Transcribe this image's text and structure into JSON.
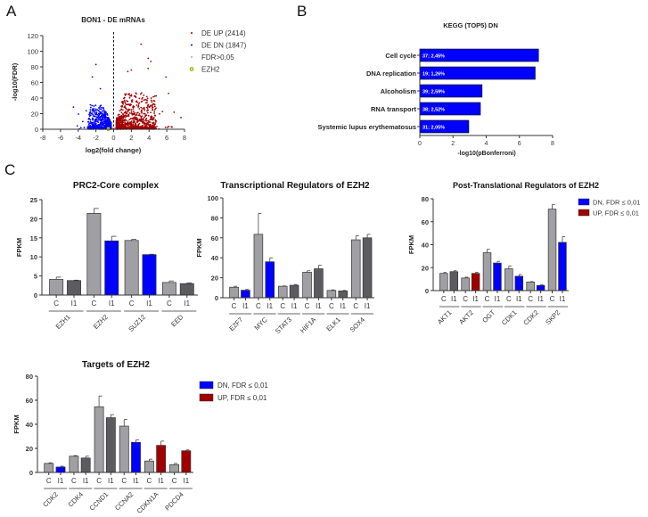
{
  "panels": {
    "a": "A",
    "b": "B",
    "c": "C"
  },
  "colors": {
    "up": "#a00000",
    "down": "#0000ff",
    "ns": "#b0b0b0",
    "ezh2": "#e8e800",
    "control": "#a0a0a4",
    "treated_ns": "#5c5c60",
    "axis": "#333333"
  },
  "chart_data": [
    {
      "id": "volcano",
      "type": "scatter",
      "title": "BON1 - DE mRNAs",
      "xlabel": "log2(fold change)",
      "ylabel": "-log10(FDR)",
      "xlim": [
        -8,
        8
      ],
      "ylim": [
        0,
        120
      ],
      "xticks": [
        -8,
        -6,
        -4,
        -2,
        0,
        2,
        4,
        6,
        8
      ],
      "yticks": [
        0,
        20,
        40,
        60,
        80,
        100,
        120
      ],
      "threshold_x": 0,
      "legend": [
        {
          "label": "DE UP (2414)",
          "key": "up",
          "count": 2414
        },
        {
          "label": "DE DN (1847)",
          "key": "down",
          "count": 1847
        },
        {
          "label": "FDR>0,05",
          "key": "ns"
        },
        {
          "label": "EZH2",
          "key": "ezh2"
        }
      ],
      "highlight": {
        "name": "EZH2",
        "x": -0.6,
        "y": 0.5
      },
      "notable_points": [
        {
          "x": 3.1,
          "y": 109
        },
        {
          "x": 3.9,
          "y": 91
        },
        {
          "x": 4.2,
          "y": 87
        },
        {
          "x": 3.9,
          "y": 78
        },
        {
          "x": 2.0,
          "y": 76
        },
        {
          "x": 1.6,
          "y": 74
        },
        {
          "x": 5.9,
          "y": 67
        },
        {
          "x": 6.2,
          "y": 46
        },
        {
          "x": -2.0,
          "y": 83
        },
        {
          "x": -2.4,
          "y": 67
        },
        {
          "x": -1.5,
          "y": 52
        },
        {
          "x": 7.6,
          "y": 15
        }
      ],
      "legend_position": "right"
    },
    {
      "id": "kegg",
      "type": "bar",
      "orientation": "horizontal",
      "title": "KEGG (TOP5) DN",
      "xlabel": "-log10(pBonferroni)",
      "xlim": [
        0,
        8
      ],
      "xticks": [
        0,
        2,
        4,
        6,
        8
      ],
      "categories": [
        "Cell cycle",
        "DNA replication",
        "Alcoholism",
        "RNA transport",
        "Systemic lupus erythematosus"
      ],
      "values": [
        7.15,
        6.95,
        3.75,
        3.65,
        2.95
      ],
      "bar_labels": [
        "37; 2,45%",
        "19; 1,26%",
        "39; 2,59%",
        "38; 2,52%",
        "31; 2,05%"
      ]
    },
    {
      "id": "prc2",
      "type": "bar",
      "title": "PRC2-Core complex",
      "ylabel": "FPKM",
      "ylim": [
        0,
        25
      ],
      "yticks": [
        0,
        5,
        10,
        15,
        20,
        25
      ],
      "conditions": [
        "C",
        "I1"
      ],
      "genes": [
        {
          "name": "EZH1",
          "values": [
            4.1,
            3.8
          ],
          "errors": [
            0.6,
            0.1
          ],
          "status": "ns"
        },
        {
          "name": "EZH2",
          "values": [
            21.4,
            14.2
          ],
          "errors": [
            1.3,
            1.2
          ],
          "status": "down"
        },
        {
          "name": "SUZ12",
          "values": [
            14.3,
            10.6
          ],
          "errors": [
            0.3,
            0.1
          ],
          "status": "down"
        },
        {
          "name": "EED",
          "values": [
            3.3,
            3.0
          ],
          "errors": [
            0.4,
            0.2
          ],
          "status": "ns"
        }
      ]
    },
    {
      "id": "transcriptional",
      "type": "bar",
      "title": "Transcriptional Regulators of EZH2",
      "ylabel": "FPKM",
      "ylim": [
        0,
        100
      ],
      "yticks": [
        0,
        20,
        40,
        60,
        80,
        100
      ],
      "conditions": [
        "C",
        "I1"
      ],
      "genes": [
        {
          "name": "E2F7",
          "values": [
            10.5,
            7.5
          ],
          "errors": [
            1.0,
            0.8
          ],
          "status": "down"
        },
        {
          "name": "MYC",
          "values": [
            63.5,
            36.0
          ],
          "errors": [
            21.0,
            4.0
          ],
          "status": "down"
        },
        {
          "name": "STAT3",
          "values": [
            11.5,
            12.5
          ],
          "errors": [
            0.3,
            0.7
          ],
          "status": "ns"
        },
        {
          "name": "HIF1A",
          "values": [
            25.5,
            29.0
          ],
          "errors": [
            1.5,
            3.5
          ],
          "status": "ns"
        },
        {
          "name": "ELK1",
          "values": [
            7.3,
            6.8
          ],
          "errors": [
            0.5,
            0.5
          ],
          "status": "ns"
        },
        {
          "name": "SOX4",
          "values": [
            58.0,
            60.0
          ],
          "errors": [
            4.0,
            3.5
          ],
          "status": "ns"
        }
      ]
    },
    {
      "id": "posttranslational",
      "type": "bar",
      "title": "Post-Translational Regulators of EZH2",
      "ylabel": "FPKM",
      "ylim": [
        0,
        80
      ],
      "yticks": [
        0,
        20,
        40,
        60,
        80
      ],
      "conditions": [
        "C",
        "I1"
      ],
      "legend": [
        {
          "label": "DN, FDR ≤ 0,01",
          "key": "down"
        },
        {
          "label": "UP, FDR ≤ 0,01",
          "key": "up"
        }
      ],
      "genes": [
        {
          "name": "AKT1",
          "values": [
            15.0,
            16.5
          ],
          "errors": [
            0.8,
            0.8
          ],
          "status": "ns"
        },
        {
          "name": "AKT2",
          "values": [
            11.0,
            15.0
          ],
          "errors": [
            0.7,
            1.0
          ],
          "status": "up"
        },
        {
          "name": "OGT",
          "values": [
            33.0,
            24.0
          ],
          "errors": [
            3.0,
            1.5
          ],
          "status": "down"
        },
        {
          "name": "CDK1",
          "values": [
            19.0,
            12.5
          ],
          "errors": [
            2.5,
            1.5
          ],
          "status": "down"
        },
        {
          "name": "CDK2",
          "values": [
            7.5,
            4.5
          ],
          "errors": [
            0.4,
            0.8
          ],
          "status": "down"
        },
        {
          "name": "SKP2",
          "values": [
            71.0,
            42.0
          ],
          "errors": [
            4.0,
            5.0
          ],
          "status": "down"
        }
      ]
    },
    {
      "id": "targets",
      "type": "bar",
      "title": "Targets of EZH2",
      "ylabel": "FPKM",
      "ylim": [
        0,
        80
      ],
      "yticks": [
        0,
        20,
        40,
        60,
        80
      ],
      "conditions": [
        "C",
        "I1"
      ],
      "legend": [
        {
          "label": "DN, FDR ≤ 0,01",
          "key": "down"
        },
        {
          "label": "UP, FDR ≤ 0,01",
          "key": "up"
        }
      ],
      "genes": [
        {
          "name": "CDK2",
          "values": [
            7.5,
            4.5
          ],
          "errors": [
            0.5,
            0.7
          ],
          "status": "down"
        },
        {
          "name": "CDK4",
          "values": [
            13.5,
            12.0
          ],
          "errors": [
            0.5,
            1.5
          ],
          "status": "ns"
        },
        {
          "name": "CCND1",
          "values": [
            54.5,
            45.5
          ],
          "errors": [
            9.0,
            2.5
          ],
          "status": "ns"
        },
        {
          "name": "CCNA2",
          "values": [
            38.5,
            25.0
          ],
          "errors": [
            5.5,
            2.0
          ],
          "status": "down"
        },
        {
          "name": "CDKN1A",
          "values": [
            9.5,
            22.5
          ],
          "errors": [
            1.5,
            3.5
          ],
          "status": "up"
        },
        {
          "name": "PDCD4",
          "values": [
            6.5,
            18.0
          ],
          "errors": [
            1.0,
            0.7
          ],
          "status": "up"
        }
      ]
    }
  ]
}
